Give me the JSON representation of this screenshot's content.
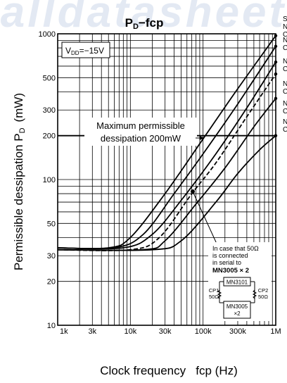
{
  "watermark": "alldatasheet",
  "chart_data": {
    "type": "line",
    "title_main": "P",
    "title_sub": "D",
    "title_rest": "−fcp",
    "condition_label": "V",
    "condition_sub": "DD",
    "condition_value": "=−15V",
    "xlabel": "Clock frequency   fcp (Hz)",
    "ylabel_main": "Permissible dessipation P",
    "ylabel_sub": "D",
    "ylabel_unit": "(mW)",
    "x_scale": "log",
    "y_scale": "log",
    "xlim": [
      1000,
      1000000
    ],
    "ylim": [
      10,
      1000
    ],
    "grid": true,
    "x_ticks": [
      {
        "value": 1000,
        "label": "1k"
      },
      {
        "value": 3000,
        "label": "3k"
      },
      {
        "value": 10000,
        "label": "10k"
      },
      {
        "value": 30000,
        "label": "30k"
      },
      {
        "value": 100000,
        "label": "100k"
      },
      {
        "value": 300000,
        "label": "300k"
      },
      {
        "value": 1000000,
        "label": "1M"
      }
    ],
    "y_ticks": [
      {
        "value": 1000,
        "label": "1000"
      },
      {
        "value": 500,
        "label": "500"
      },
      {
        "value": 300,
        "label": "300"
      },
      {
        "value": 200,
        "label": "200"
      },
      {
        "value": 100,
        "label": "100"
      },
      {
        "value": 50,
        "label": "50"
      },
      {
        "value": 30,
        "label": "30"
      },
      {
        "value": 20,
        "label": "20"
      },
      {
        "value": 10,
        "label": "10"
      }
    ],
    "max_line_value": 200,
    "annotation_max": [
      "Maximum permissible",
      "dessipation 200mW"
    ],
    "annotation_note": [
      "In case that 50Ω",
      "is connected",
      "in serial to",
      "MN3005 × 2"
    ],
    "series": [
      {
        "dashed": false,
        "x": [
          1000,
          5000,
          10000,
          30000,
          100000,
          300000,
          1000000
        ],
        "y": [
          34,
          34,
          40,
          80,
          190,
          420,
          970
        ]
      },
      {
        "dashed": false,
        "x": [
          1000,
          6000,
          15000,
          40000,
          100000,
          300000,
          1000000
        ],
        "y": [
          34,
          34,
          42,
          80,
          150,
          330,
          820
        ]
      },
      {
        "dashed": false,
        "x": [
          1000,
          8000,
          20000,
          50000,
          150000,
          400000,
          1000000
        ],
        "y": [
          34,
          34,
          42,
          72,
          150,
          310,
          640
        ]
      },
      {
        "dashed": true,
        "x": [
          1000,
          10000,
          25000,
          70000,
          150000,
          400000,
          1000000
        ],
        "y": [
          33,
          33,
          40,
          80,
          130,
          270,
          530
        ]
      },
      {
        "dashed": false,
        "x": [
          1000,
          15000,
          30000,
          80000,
          200000,
          500000,
          1000000
        ],
        "y": [
          33,
          33,
          38,
          68,
          120,
          230,
          360
        ]
      },
      {
        "dashed": false,
        "x": [
          1000,
          20000,
          50000,
          150000,
          300000,
          600000,
          1000000
        ],
        "y": [
          33,
          33,
          38,
          70,
          110,
          160,
          200
        ]
      }
    ],
    "curve_labels": [
      [
        "S",
        "N",
        "C"
      ],
      [
        "N",
        "C"
      ],
      [
        "N",
        "C"
      ],
      [
        "N",
        "C"
      ],
      [
        "N",
        "C"
      ],
      [
        "N",
        "C"
      ]
    ],
    "diagram": {
      "top_chip": "MN3101",
      "resistor_left": [
        "CP1",
        "50Ω"
      ],
      "resistor_right": [
        "CP2",
        "50Ω"
      ],
      "bottom_chip": [
        "MN3005",
        "×2"
      ]
    }
  }
}
